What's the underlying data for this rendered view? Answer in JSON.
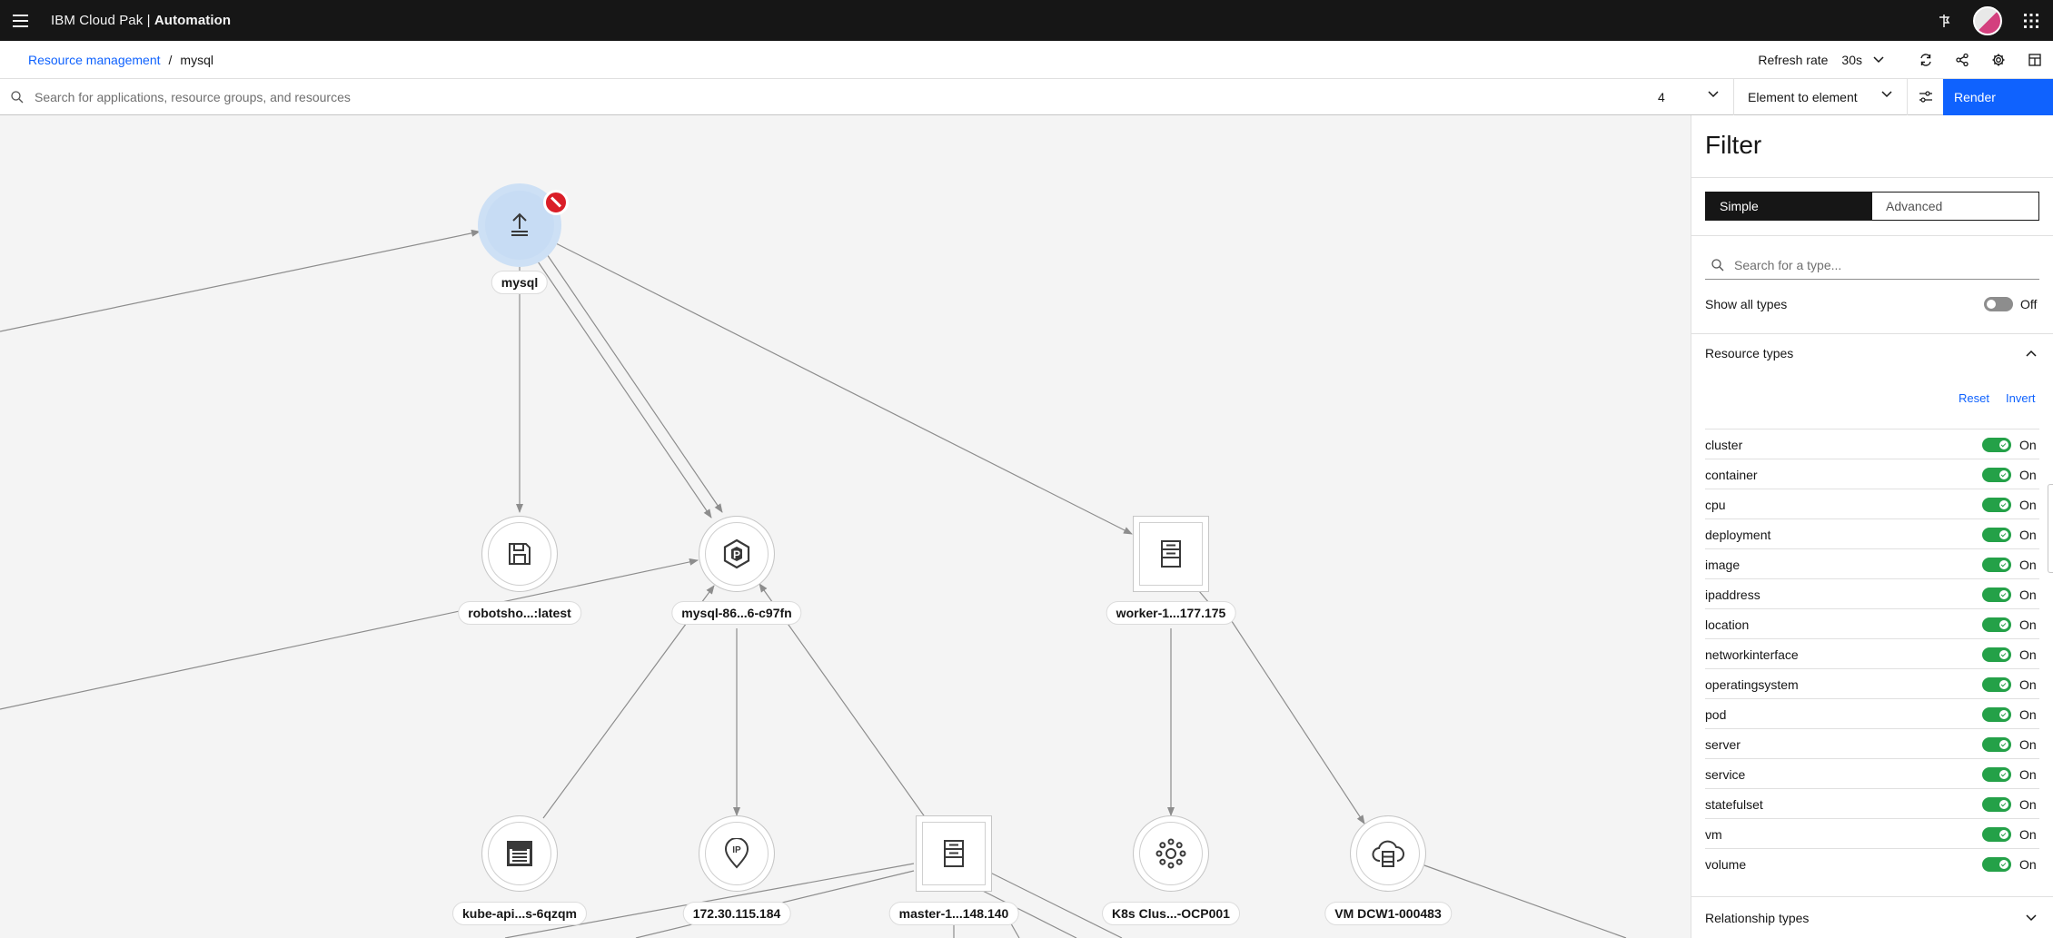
{
  "header": {
    "brand_prefix": "IBM Cloud Pak | ",
    "brand_bold": "Automation"
  },
  "breadcrumb": {
    "parent": "Resource management",
    "separator": "/",
    "current": "mysql"
  },
  "toolbar": {
    "refresh_label": "Refresh rate",
    "refresh_value": "30s"
  },
  "search": {
    "placeholder": "Search for applications, resource groups, and resources",
    "value": "",
    "hops": "4",
    "mode": "Element to element",
    "render_label": "Render"
  },
  "nodes": {
    "mysql": "mysql",
    "robotshop": "robotsho...:latest",
    "pod": "mysql-86...6-c97fn",
    "worker": "worker-1...177.175",
    "kube_api": "kube-api...s-6qzqm",
    "ip": "172.30.115.184",
    "master": "master-1...148.140",
    "cluster": "K8s Clus...-OCP001",
    "vm": "VM DCW1-000483"
  },
  "filter": {
    "title": "Filter",
    "tab_simple": "Simple",
    "tab_advanced": "Advanced",
    "type_search_placeholder": "Search for a type...",
    "show_all_label": "Show all types",
    "show_all_state": "Off",
    "resource_types_label": "Resource types",
    "reset_label": "Reset",
    "invert_label": "Invert",
    "relationship_types_label": "Relationship types",
    "types": [
      {
        "name": "cluster",
        "state": "On"
      },
      {
        "name": "container",
        "state": "On"
      },
      {
        "name": "cpu",
        "state": "On"
      },
      {
        "name": "deployment",
        "state": "On"
      },
      {
        "name": "image",
        "state": "On"
      },
      {
        "name": "ipaddress",
        "state": "On"
      },
      {
        "name": "location",
        "state": "On"
      },
      {
        "name": "networkinterface",
        "state": "On"
      },
      {
        "name": "operatingsystem",
        "state": "On"
      },
      {
        "name": "pod",
        "state": "On"
      },
      {
        "name": "server",
        "state": "On"
      },
      {
        "name": "service",
        "state": "On"
      },
      {
        "name": "statefulset",
        "state": "On"
      },
      {
        "name": "vm",
        "state": "On"
      },
      {
        "name": "volume",
        "state": "On"
      }
    ]
  },
  "colors": {
    "accent": "#0f62fe",
    "toggle_on": "#24a148",
    "blocked": "#da1e28",
    "header_bg": "#161616"
  },
  "icons": {
    "menu": "hamburger-menu-icon",
    "pin": "pin-icon",
    "switcher": "app-switcher-grid-icon",
    "refresh": "refresh-icon",
    "share": "share-icon",
    "settings": "gear-icon",
    "layout": "layout-icon",
    "search": "search-icon",
    "adjust": "sliders-icon"
  }
}
